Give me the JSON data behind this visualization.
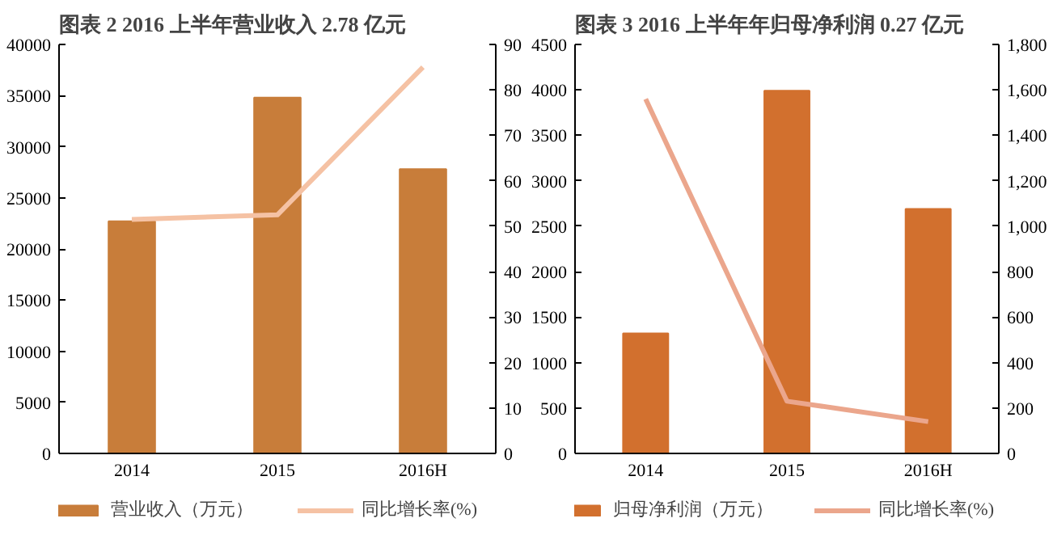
{
  "chart_data": [
    {
      "type": "bar",
      "title": "图表 2 2016 上半年营业收入 2.78 亿元",
      "categories": [
        "2014",
        "2015",
        "2016H"
      ],
      "series": [
        {
          "name": "营业收入（万元）",
          "color": "#c87d3a",
          "values": [
            22700,
            34800,
            27800
          ]
        },
        {
          "name": "同比增长率(%)",
          "type": "line",
          "axis": "y2",
          "color": "#f5c2a4",
          "values": [
            51.5,
            52.5,
            85
          ]
        }
      ],
      "ylim": [
        0,
        40000
      ],
      "yticks": [
        0,
        5000,
        10000,
        15000,
        20000,
        25000,
        30000,
        35000,
        40000
      ],
      "y2lim": [
        0,
        90
      ],
      "y2ticks": [
        0,
        10,
        20,
        30,
        40,
        50,
        60,
        70,
        80,
        90
      ],
      "legend": "bottom",
      "grid": false
    },
    {
      "type": "bar",
      "title": "图表 3 2016 上半年年归母净利润 0.27 亿元",
      "categories": [
        "2014",
        "2015",
        "2016H"
      ],
      "series": [
        {
          "name": "归母净利润（万元）",
          "color": "#d2702e",
          "values": [
            1320,
            3990,
            2690
          ]
        },
        {
          "name": "同比增长率(%)",
          "type": "line",
          "axis": "y2",
          "color": "#eba68c",
          "values": [
            1560,
            230,
            140
          ]
        }
      ],
      "ylim": [
        0,
        4500
      ],
      "yticks": [
        0,
        500,
        1000,
        1500,
        2000,
        2500,
        3000,
        3500,
        4000,
        4500
      ],
      "y2lim": [
        0,
        1800
      ],
      "y2ticks": [
        0,
        {
          "value": 200,
          "label": "200"
        },
        {
          "value": 400,
          "label": "400"
        },
        {
          "value": 600,
          "label": "600"
        },
        {
          "value": 800,
          "label": "800"
        },
        {
          "value": 1000,
          "label": "1,000"
        },
        {
          "value": 1200,
          "label": "1,200"
        },
        {
          "value": 1400,
          "label": "1,400"
        },
        {
          "value": 1600,
          "label": "1,600"
        },
        {
          "value": 1800,
          "label": "1,800"
        }
      ],
      "legend": "bottom",
      "grid": false
    }
  ]
}
